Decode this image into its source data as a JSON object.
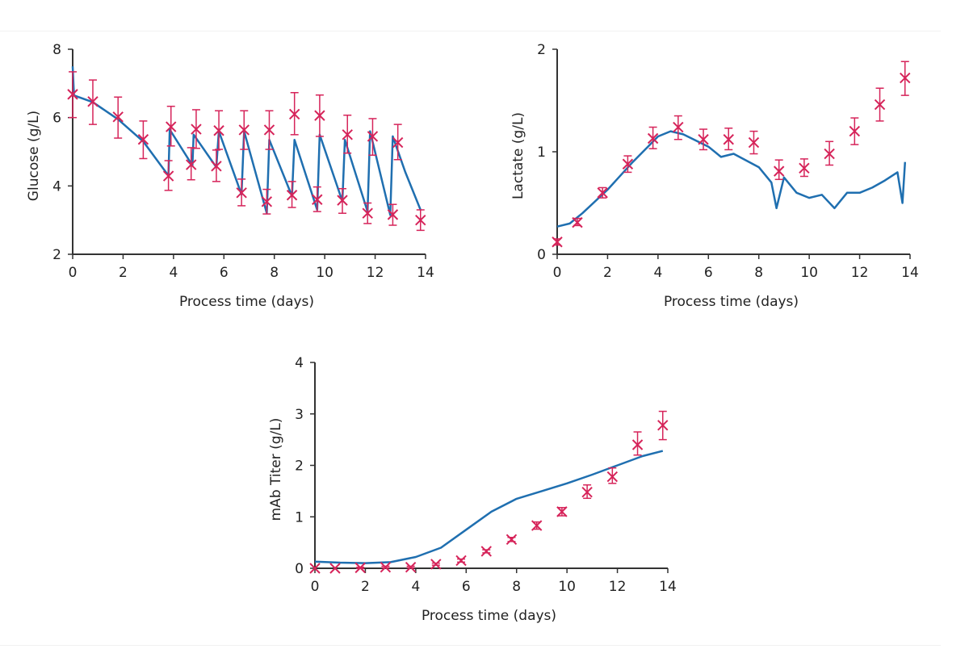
{
  "colors": {
    "model": "#1f6fb0",
    "measured": "#d6245a",
    "axis": "#333333"
  },
  "chart_data": [
    {
      "type": "line",
      "xlabel": "Process time (days)",
      "ylabel": "Glucose (g/L)",
      "xlim": [
        0,
        14
      ],
      "ylim": [
        2,
        8
      ],
      "xticks": [
        "0",
        "2",
        "4",
        "6",
        "8",
        "10",
        "12",
        "14"
      ],
      "yticks": [
        "2",
        "4",
        "6",
        "8"
      ],
      "grid": false,
      "model": [
        [
          0,
          7.5
        ],
        [
          0.05,
          6.65
        ],
        [
          0.8,
          6.45
        ],
        [
          1.8,
          5.95
        ],
        [
          2.8,
          5.3
        ],
        [
          3.8,
          4.3
        ],
        [
          3.85,
          5.65
        ],
        [
          4.75,
          4.6
        ],
        [
          4.8,
          5.5
        ],
        [
          5.7,
          4.55
        ],
        [
          5.8,
          5.6
        ],
        [
          6.7,
          3.75
        ],
        [
          6.8,
          5.6
        ],
        [
          7.7,
          3.2
        ],
        [
          7.8,
          5.35
        ],
        [
          8.7,
          3.7
        ],
        [
          8.8,
          5.35
        ],
        [
          9.7,
          3.3
        ],
        [
          9.8,
          5.5
        ],
        [
          10.7,
          3.55
        ],
        [
          10.8,
          5.35
        ],
        [
          11.7,
          3.25
        ],
        [
          11.8,
          5.6
        ],
        [
          12.6,
          3.15
        ],
        [
          12.7,
          5.45
        ],
        [
          13.2,
          4.4
        ],
        [
          13.8,
          3.3
        ]
      ],
      "measured": [
        {
          "x": 0,
          "y": 6.68,
          "lo": 6.0,
          "hi": 7.34
        },
        {
          "x": 0.8,
          "y": 6.47,
          "lo": 5.8,
          "hi": 7.1
        },
        {
          "x": 1.8,
          "y": 6.02,
          "lo": 5.4,
          "hi": 6.6
        },
        {
          "x": 2.8,
          "y": 5.36,
          "lo": 4.8,
          "hi": 5.9
        },
        {
          "x": 3.8,
          "y": 4.29,
          "lo": 3.87,
          "hi": 4.74
        },
        {
          "x": 3.9,
          "y": 5.73,
          "lo": 5.17,
          "hi": 6.33
        },
        {
          "x": 4.7,
          "y": 4.62,
          "lo": 4.18,
          "hi": 5.12
        },
        {
          "x": 4.9,
          "y": 5.66,
          "lo": 5.1,
          "hi": 6.23
        },
        {
          "x": 5.7,
          "y": 4.58,
          "lo": 4.13,
          "hi": 5.05
        },
        {
          "x": 5.8,
          "y": 5.62,
          "lo": 5.07,
          "hi": 6.2
        },
        {
          "x": 6.7,
          "y": 3.8,
          "lo": 3.42,
          "hi": 4.2
        },
        {
          "x": 6.8,
          "y": 5.64,
          "lo": 5.07,
          "hi": 6.2
        },
        {
          "x": 7.7,
          "y": 3.54,
          "lo": 3.18,
          "hi": 3.9
        },
        {
          "x": 7.8,
          "y": 5.64,
          "lo": 5.07,
          "hi": 6.2
        },
        {
          "x": 8.7,
          "y": 3.73,
          "lo": 3.37,
          "hi": 4.13
        },
        {
          "x": 8.8,
          "y": 6.1,
          "lo": 5.5,
          "hi": 6.73
        },
        {
          "x": 9.7,
          "y": 3.6,
          "lo": 3.25,
          "hi": 3.97
        },
        {
          "x": 9.8,
          "y": 6.06,
          "lo": 5.45,
          "hi": 6.66
        },
        {
          "x": 10.7,
          "y": 3.58,
          "lo": 3.2,
          "hi": 3.92
        },
        {
          "x": 10.9,
          "y": 5.5,
          "lo": 4.96,
          "hi": 6.07
        },
        {
          "x": 11.7,
          "y": 3.2,
          "lo": 2.9,
          "hi": 3.5
        },
        {
          "x": 11.9,
          "y": 5.45,
          "lo": 4.9,
          "hi": 5.97
        },
        {
          "x": 12.7,
          "y": 3.16,
          "lo": 2.85,
          "hi": 3.46
        },
        {
          "x": 12.9,
          "y": 5.27,
          "lo": 4.77,
          "hi": 5.8
        },
        {
          "x": 13.8,
          "y": 3.0,
          "lo": 2.7,
          "hi": 3.3
        }
      ]
    },
    {
      "type": "line",
      "xlabel": "Process time (days)",
      "ylabel": "Lactate (g/L)",
      "xlim": [
        0,
        14
      ],
      "ylim": [
        0,
        2
      ],
      "xticks": [
        "0",
        "2",
        "4",
        "6",
        "8",
        "10",
        "12",
        "14"
      ],
      "yticks": [
        "0",
        "1",
        "2"
      ],
      "grid": false,
      "model": [
        [
          0,
          0.27
        ],
        [
          0.5,
          0.3
        ],
        [
          1,
          0.4
        ],
        [
          2,
          0.63
        ],
        [
          3,
          0.9
        ],
        [
          3.6,
          1.05
        ],
        [
          4,
          1.15
        ],
        [
          4.5,
          1.2
        ],
        [
          5,
          1.17
        ],
        [
          6,
          1.05
        ],
        [
          6.5,
          0.95
        ],
        [
          7,
          0.98
        ],
        [
          8,
          0.85
        ],
        [
          8.5,
          0.7
        ],
        [
          8.7,
          0.45
        ],
        [
          9,
          0.75
        ],
        [
          9.5,
          0.6
        ],
        [
          10,
          0.55
        ],
        [
          10.5,
          0.58
        ],
        [
          11,
          0.45
        ],
        [
          11.5,
          0.6
        ],
        [
          12,
          0.6
        ],
        [
          12.5,
          0.65
        ],
        [
          13,
          0.72
        ],
        [
          13.5,
          0.8
        ],
        [
          13.7,
          0.5
        ],
        [
          13.8,
          0.9
        ]
      ],
      "measured": [
        {
          "x": 0,
          "y": 0.12,
          "lo": 0.09,
          "hi": 0.15
        },
        {
          "x": 0.8,
          "y": 0.31,
          "lo": 0.28,
          "hi": 0.35
        },
        {
          "x": 1.8,
          "y": 0.6,
          "lo": 0.55,
          "hi": 0.65
        },
        {
          "x": 2.8,
          "y": 0.88,
          "lo": 0.8,
          "hi": 0.96
        },
        {
          "x": 3.8,
          "y": 1.13,
          "lo": 1.03,
          "hi": 1.24
        },
        {
          "x": 4.8,
          "y": 1.24,
          "lo": 1.12,
          "hi": 1.35
        },
        {
          "x": 5.8,
          "y": 1.12,
          "lo": 1.02,
          "hi": 1.22
        },
        {
          "x": 6.8,
          "y": 1.12,
          "lo": 1.02,
          "hi": 1.23
        },
        {
          "x": 7.8,
          "y": 1.09,
          "lo": 0.98,
          "hi": 1.2
        },
        {
          "x": 8.8,
          "y": 0.81,
          "lo": 0.73,
          "hi": 0.92
        },
        {
          "x": 9.8,
          "y": 0.84,
          "lo": 0.76,
          "hi": 0.93
        },
        {
          "x": 10.8,
          "y": 0.98,
          "lo": 0.87,
          "hi": 1.1
        },
        {
          "x": 11.8,
          "y": 1.2,
          "lo": 1.07,
          "hi": 1.33
        },
        {
          "x": 12.8,
          "y": 1.46,
          "lo": 1.3,
          "hi": 1.62
        },
        {
          "x": 13.8,
          "y": 1.72,
          "lo": 1.55,
          "hi": 1.88
        }
      ]
    },
    {
      "type": "line",
      "xlabel": "Process time (days)",
      "ylabel": "mAb Titer (g/L)",
      "xlim": [
        0,
        14
      ],
      "ylim": [
        0,
        4
      ],
      "xticks": [
        "0",
        "2",
        "4",
        "6",
        "8",
        "10",
        "12",
        "14"
      ],
      "yticks": [
        "0",
        "1",
        "2",
        "3",
        "4"
      ],
      "grid": false,
      "model": [
        [
          0,
          0.13
        ],
        [
          1,
          0.11
        ],
        [
          2,
          0.1
        ],
        [
          3,
          0.12
        ],
        [
          4,
          0.22
        ],
        [
          5,
          0.4
        ],
        [
          6,
          0.75
        ],
        [
          7,
          1.1
        ],
        [
          8,
          1.35
        ],
        [
          9,
          1.5
        ],
        [
          10,
          1.65
        ],
        [
          11,
          1.82
        ],
        [
          12,
          2.0
        ],
        [
          13,
          2.18
        ],
        [
          13.8,
          2.28
        ]
      ],
      "measured": [
        {
          "x": 0,
          "y": 0,
          "lo": 0,
          "hi": 0
        },
        {
          "x": 0.8,
          "y": 0,
          "lo": 0,
          "hi": 0
        },
        {
          "x": 1.8,
          "y": 0.01,
          "lo": 0,
          "hi": 0.02
        },
        {
          "x": 2.8,
          "y": 0.02,
          "lo": 0.01,
          "hi": 0.04
        },
        {
          "x": 3.8,
          "y": 0.02,
          "lo": 0.01,
          "hi": 0.04
        },
        {
          "x": 4.8,
          "y": 0.08,
          "lo": 0.06,
          "hi": 0.1
        },
        {
          "x": 5.8,
          "y": 0.15,
          "lo": 0.12,
          "hi": 0.18
        },
        {
          "x": 6.8,
          "y": 0.33,
          "lo": 0.3,
          "hi": 0.36
        },
        {
          "x": 7.8,
          "y": 0.56,
          "lo": 0.52,
          "hi": 0.6
        },
        {
          "x": 8.8,
          "y": 0.83,
          "lo": 0.76,
          "hi": 0.9
        },
        {
          "x": 9.8,
          "y": 1.1,
          "lo": 1.02,
          "hi": 1.18
        },
        {
          "x": 10.8,
          "y": 1.48,
          "lo": 1.36,
          "hi": 1.62
        },
        {
          "x": 11.8,
          "y": 1.78,
          "lo": 1.65,
          "hi": 1.95
        },
        {
          "x": 12.8,
          "y": 2.4,
          "lo": 2.2,
          "hi": 2.65
        },
        {
          "x": 13.8,
          "y": 2.78,
          "lo": 2.5,
          "hi": 3.05
        }
      ]
    }
  ]
}
